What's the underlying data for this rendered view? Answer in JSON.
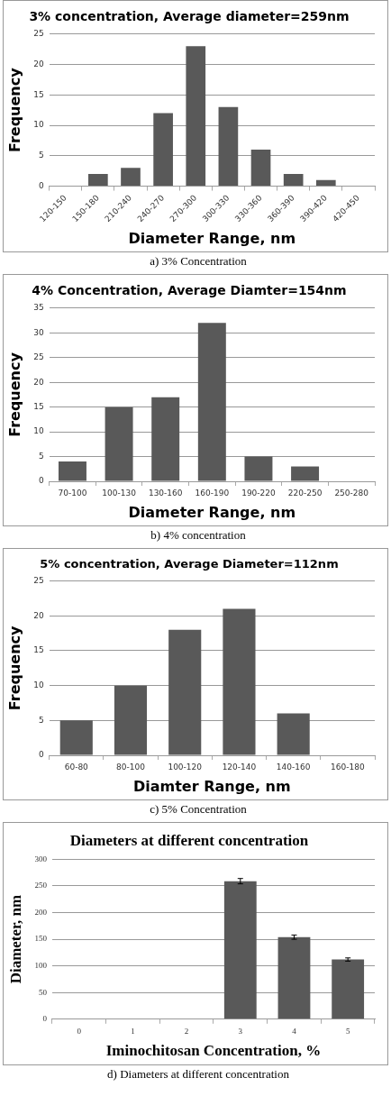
{
  "chart_data": [
    {
      "type": "bar",
      "title": "3% concentration, Average diameter=259nm",
      "xlabel": "Diameter Range, nm",
      "ylabel": "Frequency",
      "categories": [
        "120-150",
        "150-180",
        "210-240",
        "240-270",
        "270-300",
        "300-330",
        "330-360",
        "360-390",
        "390-420",
        "420-450"
      ],
      "values": [
        0,
        2,
        3,
        12,
        23,
        13,
        6,
        2,
        1,
        0
      ],
      "color": "#595959",
      "ylim": [
        0,
        25
      ],
      "yticks": [
        0,
        5,
        10,
        15,
        20,
        25
      ],
      "grid": "y",
      "annotations": [
        "a) 3% Concentration"
      ]
    },
    {
      "type": "bar",
      "title": "4% Concentration, Average Diamter=154nm",
      "xlabel": "Diameter Range, nm",
      "ylabel": "Frequency",
      "categories": [
        "70-100",
        "100-130",
        "130-160",
        "160-190",
        "190-220",
        "220-250",
        "250-280"
      ],
      "values": [
        4,
        15,
        17,
        32,
        5,
        3,
        0
      ],
      "color": "#595959",
      "ylim": [
        0,
        35
      ],
      "yticks": [
        0,
        5,
        10,
        15,
        20,
        25,
        30,
        35
      ],
      "grid": "y",
      "annotations": [
        "b) 4% concentration"
      ]
    },
    {
      "type": "bar",
      "title": "5% concentration, Average Diameter=112nm",
      "xlabel": "Diamter Range, nm",
      "ylabel": "Frequency",
      "categories": [
        "60-80",
        "80-100",
        "100-120",
        "120-140",
        "140-160",
        "160-180"
      ],
      "values": [
        5,
        10,
        18,
        21,
        6,
        0
      ],
      "color": "#595959",
      "ylim": [
        0,
        25
      ],
      "yticks": [
        0,
        5,
        10,
        15,
        20,
        25
      ],
      "grid": "y",
      "annotations": [
        "c) 5% Concentration"
      ]
    },
    {
      "type": "bar",
      "title": "Diameters at different concentration",
      "xlabel": "Iminochitosan Concentration, %",
      "ylabel": "Diameter, nm",
      "categories": [
        "0",
        "1",
        "2",
        "3",
        "4",
        "5"
      ],
      "values": [
        null,
        null,
        null,
        259,
        154,
        112
      ],
      "errors": [
        null,
        null,
        null,
        5,
        4,
        3
      ],
      "color": "#595959",
      "ylim": [
        0,
        300
      ],
      "yticks": [
        0,
        50,
        100,
        150,
        200,
        250,
        300
      ],
      "grid": "y",
      "annotations": [
        "d) Diameters at different concentration"
      ]
    }
  ]
}
